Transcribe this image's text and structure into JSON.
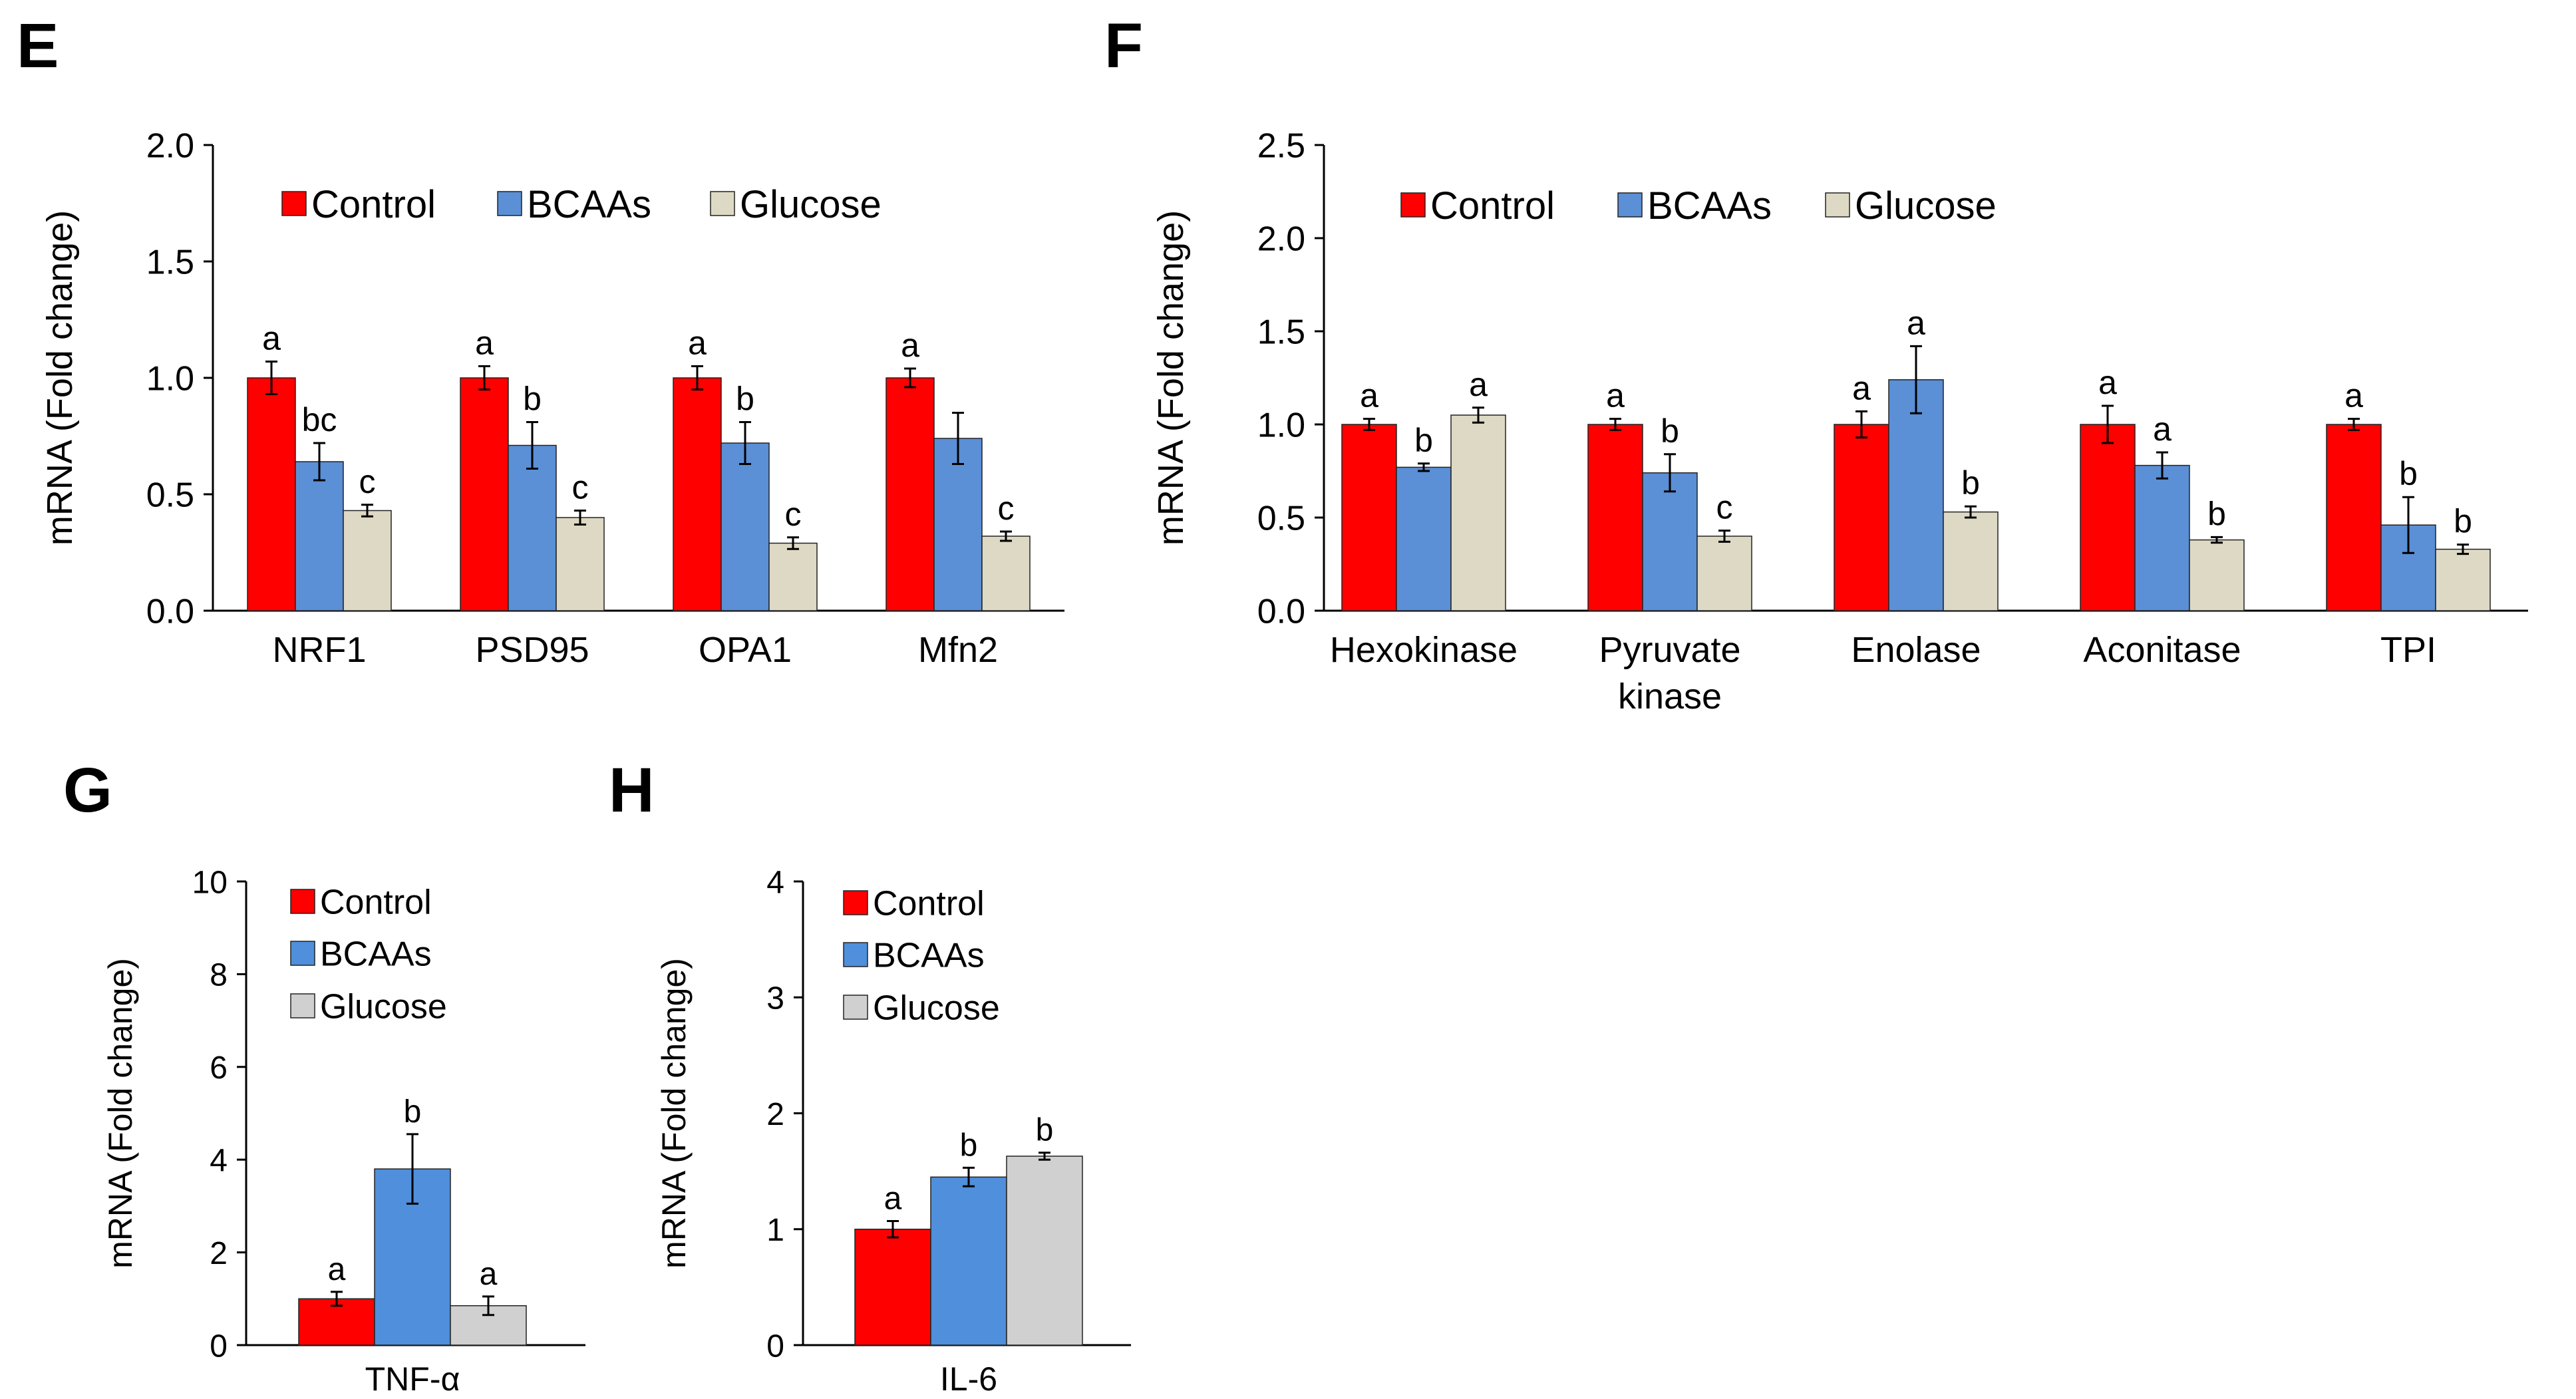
{
  "colors": {
    "control": "#ff0000",
    "bcaas_ef": "#5b8fd6",
    "glucose_ef": "#ddd9c4",
    "bcaas_gh": "#4f8fdc",
    "glucose_gh": "#d0d0d0",
    "axis": "#000000",
    "error_bar": "#000000"
  },
  "chart_data": [
    {
      "panel": "E",
      "type": "bar",
      "ylabel": "mRNA (Fold change)",
      "xlabel": "",
      "ylim": [
        0,
        2.0
      ],
      "yticks": [
        "0.0",
        "0.5",
        "1.0",
        "1.5",
        "2.0"
      ],
      "ytick_values": [
        0,
        0.5,
        1.0,
        1.5,
        2.0
      ],
      "categories": [
        "NRF1",
        "PSD95",
        "OPA1",
        "Mfn2"
      ],
      "legend_position": "top-left",
      "grid": false,
      "series": [
        {
          "name": "Control",
          "color_key": "control",
          "values": [
            1.0,
            1.0,
            1.0,
            1.0
          ],
          "errors": [
            0.07,
            0.05,
            0.05,
            0.04
          ],
          "labels": [
            "a",
            "a",
            "a",
            "a"
          ]
        },
        {
          "name": "BCAAs",
          "color_key": "bcaas_ef",
          "values": [
            0.64,
            0.71,
            0.72,
            0.74
          ],
          "errors": [
            0.08,
            0.1,
            0.09,
            0.11
          ],
          "labels": [
            "bc",
            "b",
            "b",
            ""
          ]
        },
        {
          "name": "Glucose",
          "color_key": "glucose_ef",
          "values": [
            0.43,
            0.4,
            0.29,
            0.32
          ],
          "errors": [
            0.025,
            0.03,
            0.025,
            0.02
          ],
          "labels": [
            "c",
            "c",
            "c",
            "c"
          ]
        }
      ]
    },
    {
      "panel": "F",
      "type": "bar",
      "ylabel": "mRNA (Fold change)",
      "xlabel": "",
      "ylim": [
        0,
        2.5
      ],
      "yticks": [
        "0.0",
        "0.5",
        "1.0",
        "1.5",
        "2.0",
        "2.5"
      ],
      "ytick_values": [
        0,
        0.5,
        1.0,
        1.5,
        2.0,
        2.5
      ],
      "categories": [
        "Hexokinase",
        "Pyruvate kinase",
        "Enolase",
        "Aconitase",
        "TPI"
      ],
      "legend_position": "top-left",
      "grid": false,
      "series": [
        {
          "name": "Control",
          "color_key": "control",
          "values": [
            1.0,
            1.0,
            1.0,
            1.0,
            1.0
          ],
          "errors": [
            0.03,
            0.03,
            0.07,
            0.1,
            0.03
          ],
          "labels": [
            "a",
            "a",
            "a",
            "a",
            "a"
          ]
        },
        {
          "name": "BCAAs",
          "color_key": "bcaas_ef",
          "values": [
            0.77,
            0.74,
            1.24,
            0.78,
            0.46
          ],
          "errors": [
            0.02,
            0.1,
            0.18,
            0.07,
            0.15
          ],
          "labels": [
            "b",
            "b",
            "a",
            "a",
            "b"
          ]
        },
        {
          "name": "Glucose",
          "color_key": "glucose_ef",
          "values": [
            1.05,
            0.4,
            0.53,
            0.38,
            0.33
          ],
          "errors": [
            0.04,
            0.03,
            0.03,
            0.015,
            0.025
          ],
          "labels": [
            "a",
            "c",
            "b",
            "b",
            "b"
          ]
        }
      ]
    },
    {
      "panel": "G",
      "type": "bar",
      "ylabel": "mRNA (Fold change)",
      "xlabel": "",
      "ylim": [
        0,
        10
      ],
      "yticks": [
        "0",
        "2",
        "4",
        "6",
        "8",
        "10"
      ],
      "ytick_values": [
        0,
        2,
        4,
        6,
        8,
        10
      ],
      "categories": [
        "TNF-α"
      ],
      "legend_position": "top-left",
      "grid": false,
      "series": [
        {
          "name": "Control",
          "color_key": "control",
          "values": [
            1.0
          ],
          "errors": [
            0.15
          ],
          "labels": [
            "a"
          ]
        },
        {
          "name": "BCAAs",
          "color_key": "bcaas_gh",
          "values": [
            3.8
          ],
          "errors": [
            0.75
          ],
          "labels": [
            "b"
          ]
        },
        {
          "name": "Glucose",
          "color_key": "glucose_gh",
          "values": [
            0.85
          ],
          "errors": [
            0.2
          ],
          "labels": [
            "a"
          ]
        }
      ]
    },
    {
      "panel": "H",
      "type": "bar",
      "ylabel": "mRNA (Fold change)",
      "xlabel": "",
      "ylim": [
        0,
        4
      ],
      "yticks": [
        "0",
        "1",
        "2",
        "3",
        "4"
      ],
      "ytick_values": [
        0,
        1,
        2,
        3,
        4
      ],
      "categories": [
        "IL-6"
      ],
      "legend_position": "top-left",
      "grid": false,
      "series": [
        {
          "name": "Control",
          "color_key": "control",
          "values": [
            1.0
          ],
          "errors": [
            0.07
          ],
          "labels": [
            "a"
          ]
        },
        {
          "name": "BCAAs",
          "color_key": "bcaas_gh",
          "values": [
            1.45
          ],
          "errors": [
            0.08
          ],
          "labels": [
            "b"
          ]
        },
        {
          "name": "Glucose",
          "color_key": "glucose_gh",
          "values": [
            1.63
          ],
          "errors": [
            0.03
          ],
          "labels": [
            "b"
          ]
        }
      ]
    }
  ]
}
